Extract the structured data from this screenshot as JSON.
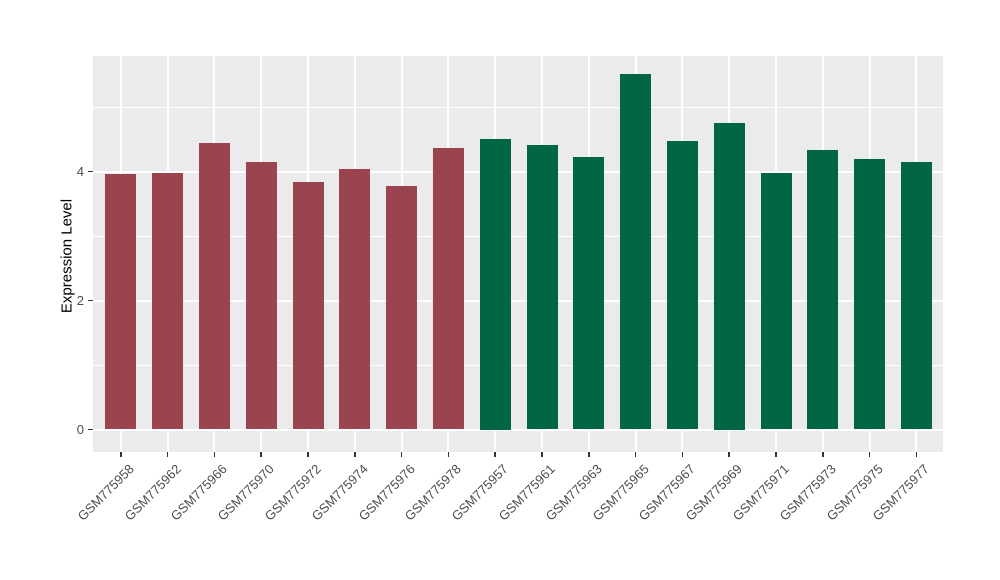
{
  "chart_data": {
    "type": "bar",
    "title": "",
    "xlabel": "",
    "ylabel": "Expression Level",
    "ylim": [
      0,
      5.79
    ],
    "yticks": [
      0,
      2,
      4
    ],
    "yminor_ticks": [
      1,
      3,
      5
    ],
    "grid": "major and minor, white on gray panel",
    "legend": "none",
    "panel_bg": "#EBEBEB",
    "grid_color": "#FFFFFF",
    "axis_text_color": "#4D4D4D",
    "tick_color": "#333333",
    "groups": [
      {
        "name": "left-group",
        "color": "#9A4450"
      },
      {
        "name": "right-group",
        "color": "#006646"
      }
    ],
    "bars": [
      {
        "label": "GSM775958",
        "value": 3.96,
        "group": 0
      },
      {
        "label": "GSM775962",
        "value": 3.97,
        "group": 0
      },
      {
        "label": "GSM775966",
        "value": 4.44,
        "group": 0
      },
      {
        "label": "GSM775970",
        "value": 4.14,
        "group": 0
      },
      {
        "label": "GSM775972",
        "value": 3.84,
        "group": 0
      },
      {
        "label": "GSM775974",
        "value": 4.04,
        "group": 0
      },
      {
        "label": "GSM775976",
        "value": 3.78,
        "group": 0
      },
      {
        "label": "GSM775978",
        "value": 4.36,
        "group": 0
      },
      {
        "label": "GSM775957",
        "value": 4.5,
        "group": 1
      },
      {
        "label": "GSM775961",
        "value": 4.41,
        "group": 1
      },
      {
        "label": "GSM775963",
        "value": 4.22,
        "group": 1
      },
      {
        "label": "GSM775965",
        "value": 5.51,
        "group": 1
      },
      {
        "label": "GSM775967",
        "value": 4.47,
        "group": 1
      },
      {
        "label": "GSM775969",
        "value": 4.75,
        "group": 1
      },
      {
        "label": "GSM775971",
        "value": 3.98,
        "group": 1
      },
      {
        "label": "GSM775973",
        "value": 4.33,
        "group": 1
      },
      {
        "label": "GSM775975",
        "value": 4.19,
        "group": 1
      },
      {
        "label": "GSM775977",
        "value": 4.15,
        "group": 1
      }
    ]
  }
}
